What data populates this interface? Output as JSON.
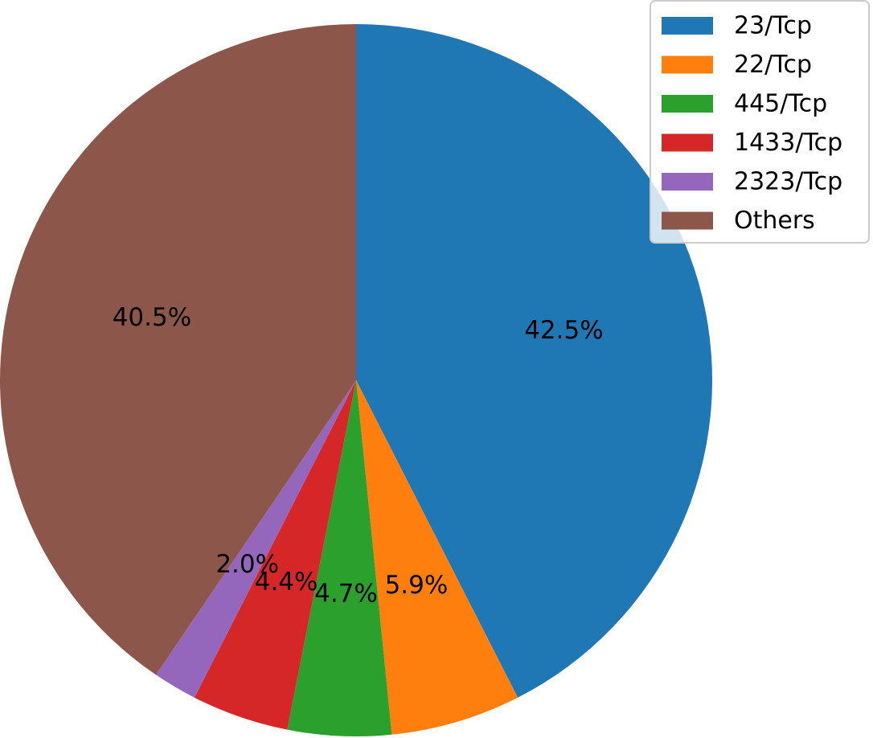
{
  "chart_data": {
    "type": "pie",
    "title": "",
    "start_angle_deg": 90,
    "direction": "clockwise",
    "legend_position": "top-right",
    "slices": [
      {
        "label": "23/Tcp",
        "value": 42.5,
        "pct_label": "42.5%",
        "color": "#1f77b4"
      },
      {
        "label": "22/Tcp",
        "value": 5.9,
        "pct_label": "5.9%",
        "color": "#ff7f0e"
      },
      {
        "label": "445/Tcp",
        "value": 4.7,
        "pct_label": "4.7%",
        "color": "#2ca02c"
      },
      {
        "label": "1433/Tcp",
        "value": 4.4,
        "pct_label": "4.4%",
        "color": "#d62728"
      },
      {
        "label": "2323/Tcp",
        "value": 2.0,
        "pct_label": "2.0%",
        "color": "#9467bd"
      },
      {
        "label": "Others",
        "value": 40.5,
        "pct_label": "40.5%",
        "color": "#8c564b"
      }
    ]
  }
}
